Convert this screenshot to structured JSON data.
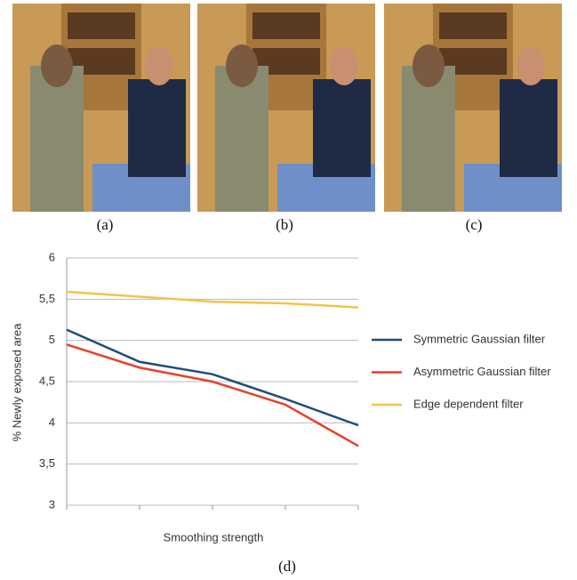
{
  "panels": [
    {
      "caption": "(a)"
    },
    {
      "caption": "(b)"
    },
    {
      "caption": "(c)"
    }
  ],
  "chart_caption": "(d)",
  "chart_data": {
    "type": "line",
    "x_label": "Smoothing strength",
    "y_label": "% Newly exposed area",
    "categories": [
      null,
      null,
      null,
      null,
      null
    ],
    "series": [
      {
        "name": "Symmetric Gaussian filter",
        "color": "#1f4e79",
        "values": [
          5.13,
          4.74,
          4.59,
          4.29,
          3.97
        ]
      },
      {
        "name": "Asymmetric Gaussian filter",
        "color": "#e8402a",
        "values": [
          4.95,
          4.67,
          4.5,
          4.22,
          3.72
        ]
      },
      {
        "name": "Edge dependent filter",
        "color": "#f2c44a",
        "values": [
          5.59,
          5.53,
          5.47,
          5.45,
          5.4
        ]
      }
    ],
    "ylim": [
      3,
      6
    ],
    "yticks": [
      3,
      {
        "value": 3.5,
        "label": "3,5"
      },
      4,
      {
        "value": 4.5,
        "label": "4,5"
      },
      5,
      {
        "value": 5.5,
        "label": "5,5"
      },
      6
    ],
    "grid": true,
    "legend": "right"
  }
}
